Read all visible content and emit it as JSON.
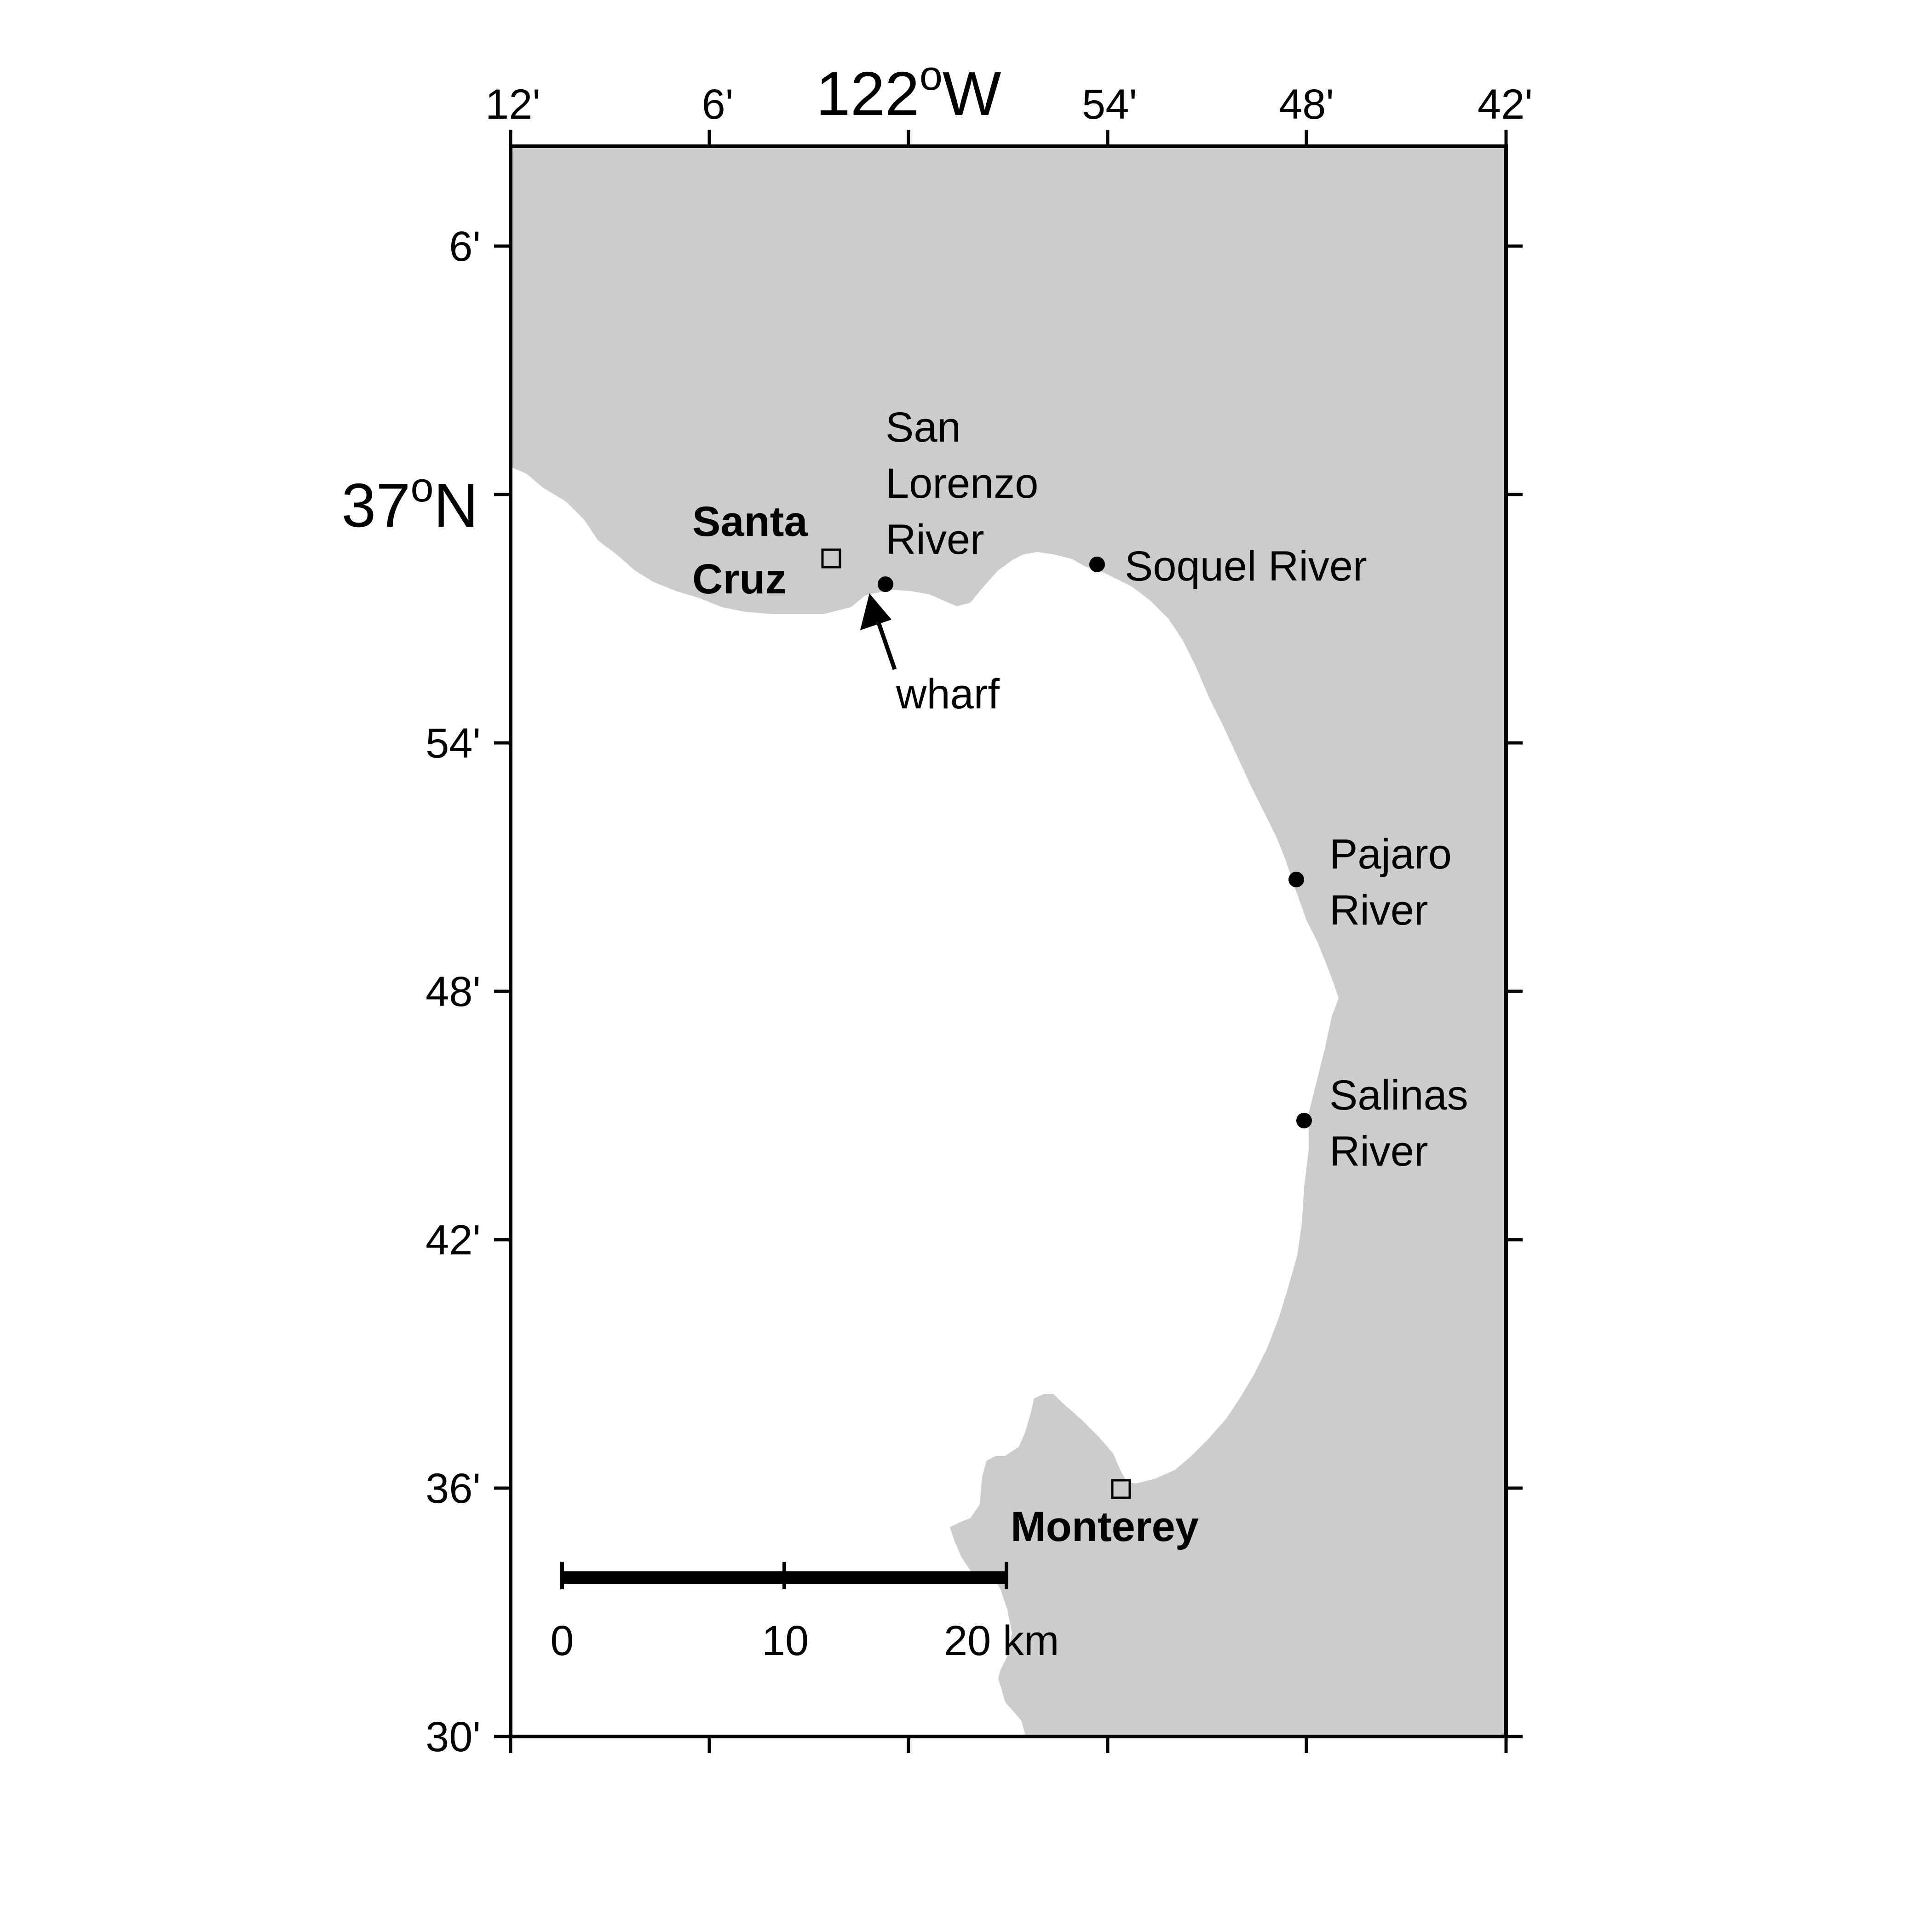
{
  "map": {
    "longitude_axis": {
      "unit_label_base": "122",
      "unit_label_sup": "o",
      "unit_label_hemisphere": "W",
      "ticks": [
        "12'",
        "6'",
        "54'",
        "48'",
        "42'"
      ]
    },
    "latitude_axis": {
      "unit_label_base": "37",
      "unit_label_sup": "o",
      "unit_label_hemisphere": "N",
      "ticks": [
        "6'",
        "54'",
        "48'",
        "42'",
        "36'",
        "30'"
      ]
    },
    "places": {
      "santa_cruz": {
        "line1": "Santa",
        "line2": "Cruz"
      },
      "monterey": "Monterey",
      "san_lorenzo": {
        "line1": "San",
        "line2": "Lorenzo",
        "line3": "River"
      },
      "soquel": "Soquel River",
      "pajaro": {
        "line1": "Pajaro",
        "line2": "River"
      },
      "salinas": {
        "line1": "Salinas",
        "line2": "River"
      },
      "wharf": "wharf"
    },
    "scale_bar": {
      "labels": [
        "0",
        "10",
        "20 km"
      ]
    },
    "colors": {
      "land": "#cccccc",
      "water": "#ffffff",
      "frame": "#000000"
    }
  }
}
